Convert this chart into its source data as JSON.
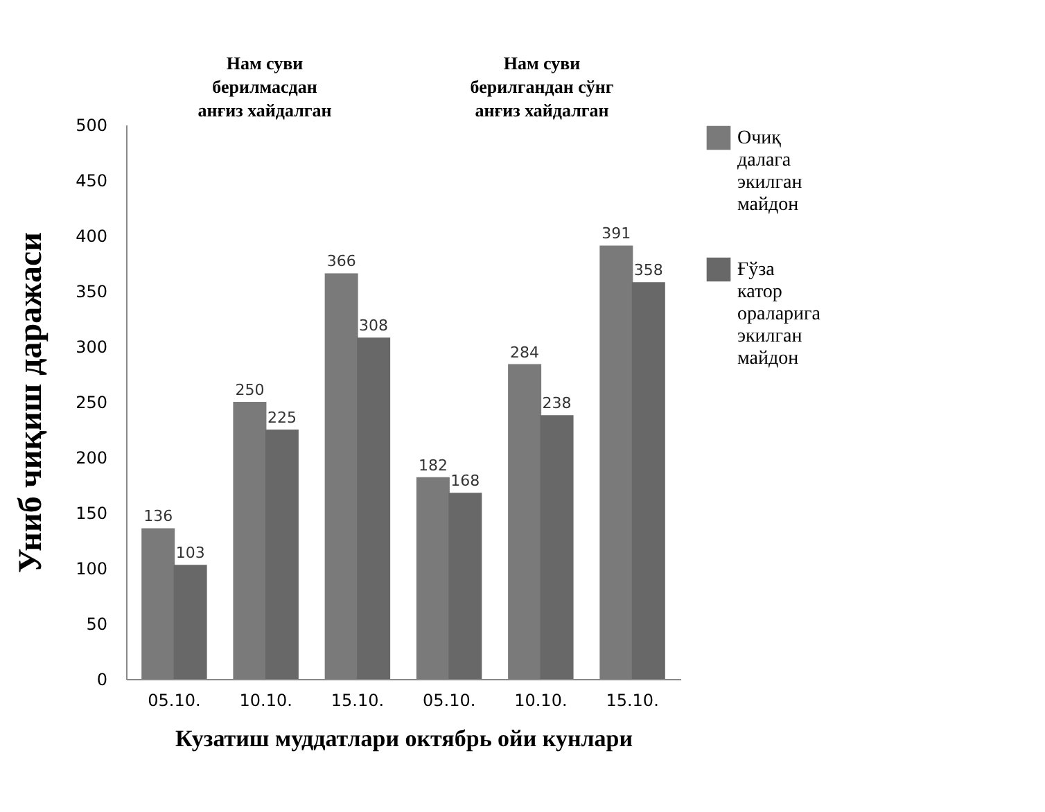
{
  "chart_data": {
    "type": "bar",
    "ylabel": "Униб чиқиш даражаси",
    "xlabel": "Кузатиш муддатлари октябрь ойи кунлари",
    "categories": [
      "05.10.",
      "10.10.",
      "15.10.",
      "05.10.",
      "10.10.",
      "15.10."
    ],
    "series": [
      {
        "name": "Очиқ далага экилган майдон",
        "color": "#7a7a7a",
        "values": [
          136,
          250,
          366,
          182,
          284,
          391
        ]
      },
      {
        "name": "Ғўза катор ораларига экилган майдон",
        "color": "#686868",
        "values": [
          103,
          225,
          308,
          168,
          238,
          358
        ]
      }
    ],
    "annotations": [
      "Нам суви берилмасдан анғиз хайдалган",
      "Нам суви берилгандан сўнг анғиз хайдалган"
    ],
    "ylim": [
      0,
      500
    ],
    "yticks": [
      0,
      50,
      100,
      150,
      200,
      250,
      300,
      350,
      400,
      450,
      500
    ],
    "data_labels": true,
    "grid": false,
    "legend": "right"
  }
}
